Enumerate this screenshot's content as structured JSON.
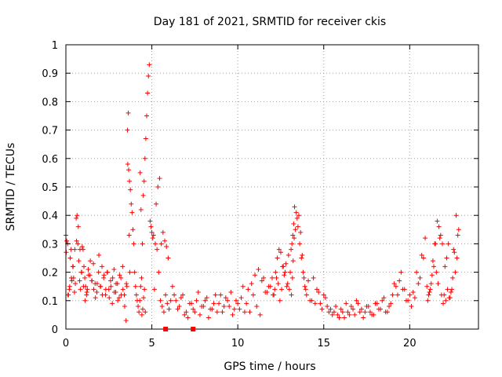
{
  "chart_data": {
    "type": "scatter",
    "title": "Day 181 of 2021, SRMTID for receiver ckis",
    "xlabel": "GPS time / hours",
    "ylabel": "SRMTID / TECUs",
    "xlim": [
      0,
      24
    ],
    "ylim": [
      0,
      1
    ],
    "xticks": [
      0,
      5,
      10,
      15,
      20
    ],
    "yticks": [
      0,
      0.1,
      0.2,
      0.3,
      0.4,
      0.5,
      0.6,
      0.7,
      0.8,
      0.9,
      1
    ],
    "xtick_labels": [
      "0",
      "5",
      "10",
      "15",
      "20"
    ],
    "ytick_labels": [
      "0",
      "0.1",
      "0.2",
      "0.3",
      "0.4",
      "0.5",
      "0.6",
      "0.7",
      "0.8",
      "0.9",
      "1"
    ],
    "marker": "plus",
    "color": "#ff0000",
    "grid": true,
    "gap_markers_x": [
      5.8,
      7.4
    ],
    "series": [
      {
        "name": "SRMTID",
        "x": [
          0.0,
          0.05,
          0.1,
          0.15,
          0.2,
          0.25,
          0.3,
          0.35,
          0.4,
          0.45,
          0.5,
          0.55,
          0.6,
          0.65,
          0.7,
          0.75,
          0.8,
          0.85,
          0.9,
          0.95,
          1.0,
          1.05,
          1.1,
          1.15,
          1.2,
          1.25,
          1.3,
          1.4,
          1.5,
          1.6,
          1.7,
          1.8,
          1.9,
          2.0,
          2.1,
          2.2,
          2.3,
          2.4,
          2.5,
          2.6,
          2.7,
          2.8,
          2.9,
          3.0,
          3.1,
          3.2,
          3.3,
          3.4,
          3.5,
          3.55,
          3.6,
          3.65,
          3.7,
          3.75,
          3.8,
          3.85,
          3.9,
          3.95,
          4.0,
          4.05,
          4.1,
          4.15,
          4.2,
          4.25,
          4.3,
          4.35,
          4.4,
          4.45,
          4.5,
          4.55,
          4.6,
          4.65,
          4.7,
          4.75,
          4.8,
          4.85,
          4.9,
          4.95,
          5.0,
          5.05,
          5.1,
          5.2,
          5.3,
          5.4,
          5.5,
          5.6,
          5.7,
          5.8,
          5.9,
          6.0,
          6.2,
          6.4,
          6.6,
          6.8,
          7.0,
          7.2,
          7.4,
          7.6,
          7.8,
          8.0,
          8.2,
          8.4,
          8.6,
          8.8,
          9.0,
          9.2,
          9.4,
          9.6,
          9.8,
          10.0,
          10.2,
          10.4,
          10.6,
          10.8,
          11.0,
          11.2,
          11.4,
          11.6,
          11.8,
          12.0,
          12.1,
          12.2,
          12.3,
          12.4,
          12.5,
          12.6,
          12.7,
          12.8,
          12.9,
          13.0,
          13.05,
          13.1,
          13.15,
          13.2,
          13.25,
          13.3,
          13.4,
          13.5,
          13.6,
          13.7,
          13.8,
          13.9,
          14.0,
          14.2,
          14.4,
          14.6,
          14.8,
          15.0,
          15.2,
          15.4,
          15.6,
          15.8,
          16.0,
          16.2,
          16.4,
          16.6,
          16.8,
          17.0,
          17.2,
          17.4,
          17.6,
          17.8,
          18.0,
          18.2,
          18.4,
          18.6,
          18.8,
          19.0,
          19.2,
          19.4,
          19.6,
          19.8,
          20.0,
          20.2,
          20.4,
          20.6,
          20.8,
          21.0,
          21.1,
          21.2,
          21.3,
          21.4,
          21.5,
          21.6,
          21.7,
          21.8,
          21.9,
          22.0,
          22.1,
          22.2,
          22.3,
          22.4,
          22.5,
          22.6,
          22.7,
          22.8,
          0.02,
          0.12,
          0.22,
          0.32,
          0.42,
          0.52,
          0.62,
          0.72,
          0.82,
          0.92,
          1.02,
          1.12,
          1.22,
          1.32,
          1.42,
          1.52,
          1.62,
          1.72,
          1.82,
          1.92,
          2.02,
          2.12,
          2.22,
          2.32,
          2.42,
          2.52,
          2.62,
          2.72,
          2.82,
          2.92,
          3.02,
          3.12,
          3.22,
          3.32,
          3.42,
          3.52,
          4.47,
          4.52,
          4.57,
          4.62,
          4.42,
          4.37,
          4.32,
          3.58,
          3.63,
          3.68,
          3.72,
          5.15,
          5.25,
          5.35,
          5.45,
          5.55,
          5.65,
          5.75,
          5.85,
          5.95,
          6.1,
          6.3,
          6.5,
          6.7,
          6.9,
          7.1,
          7.3,
          7.5,
          7.7,
          7.9,
          8.1,
          8.3,
          8.5,
          8.7,
          8.9,
          9.1,
          9.3,
          9.5,
          9.7,
          9.9,
          10.1,
          10.3,
          10.5,
          10.7,
          10.9,
          11.1,
          11.3,
          11.5,
          11.7,
          11.9,
          12.05,
          12.15,
          12.25,
          12.35,
          12.45,
          12.55,
          12.65,
          12.75,
          12.85,
          12.95,
          13.12,
          13.18,
          13.22,
          13.28,
          13.35,
          13.45,
          13.55,
          13.65,
          13.75,
          13.85,
          13.95,
          14.1,
          14.3,
          14.5,
          14.7,
          14.9,
          15.1,
          15.3,
          15.5,
          15.7,
          15.9,
          16.1,
          16.3,
          16.5,
          16.7,
          16.9,
          17.1,
          17.3,
          17.5,
          17.7,
          17.9,
          18.1,
          18.3,
          18.5,
          18.7,
          18.9,
          19.1,
          19.3,
          19.5,
          19.7,
          19.9,
          20.1,
          20.3,
          20.5,
          20.7,
          20.9,
          21.05,
          21.15,
          21.25,
          21.35,
          21.45,
          21.55,
          21.65,
          21.75,
          21.85,
          21.95,
          22.05,
          22.15,
          22.25,
          22.35,
          22.45,
          22.55,
          22.65,
          22.75,
          22.85
        ],
        "y": [
          0.33,
          0.31,
          0.3,
          0.12,
          0.14,
          0.25,
          0.28,
          0.17,
          0.22,
          0.18,
          0.13,
          0.16,
          0.39,
          0.4,
          0.3,
          0.24,
          0.17,
          0.14,
          0.2,
          0.29,
          0.28,
          0.22,
          0.18,
          0.15,
          0.12,
          0.14,
          0.21,
          0.19,
          0.17,
          0.23,
          0.16,
          0.13,
          0.2,
          0.15,
          0.22,
          0.18,
          0.12,
          0.2,
          0.14,
          0.17,
          0.09,
          0.21,
          0.13,
          0.16,
          0.11,
          0.18,
          0.22,
          0.12,
          0.03,
          0.15,
          0.58,
          0.56,
          0.52,
          0.49,
          0.44,
          0.41,
          0.35,
          0.3,
          0.2,
          0.15,
          0.12,
          0.1,
          0.08,
          0.06,
          0.1,
          0.15,
          0.18,
          0.3,
          0.47,
          0.52,
          0.6,
          0.67,
          0.75,
          0.83,
          0.89,
          0.93,
          0.38,
          0.36,
          0.34,
          0.32,
          0.33,
          0.3,
          0.28,
          0.2,
          0.1,
          0.08,
          0.06,
          0.12,
          0.09,
          0.07,
          0.15,
          0.1,
          0.08,
          0.12,
          0.06,
          0.09,
          0.07,
          0.1,
          0.05,
          0.08,
          0.11,
          0.07,
          0.09,
          0.06,
          0.12,
          0.08,
          0.1,
          0.13,
          0.07,
          0.09,
          0.11,
          0.06,
          0.14,
          0.16,
          0.19,
          0.21,
          0.17,
          0.13,
          0.15,
          0.18,
          0.12,
          0.2,
          0.25,
          0.28,
          0.27,
          0.22,
          0.19,
          0.23,
          0.16,
          0.14,
          0.2,
          0.28,
          0.3,
          0.33,
          0.37,
          0.43,
          0.41,
          0.36,
          0.3,
          0.25,
          0.2,
          0.15,
          0.12,
          0.1,
          0.18,
          0.14,
          0.09,
          0.12,
          0.08,
          0.07,
          0.06,
          0.05,
          0.07,
          0.04,
          0.06,
          0.08,
          0.05,
          0.09,
          0.07,
          0.06,
          0.08,
          0.05,
          0.09,
          0.07,
          0.1,
          0.06,
          0.08,
          0.12,
          0.15,
          0.17,
          0.14,
          0.1,
          0.12,
          0.13,
          0.2,
          0.18,
          0.25,
          0.15,
          0.12,
          0.14,
          0.19,
          0.22,
          0.3,
          0.38,
          0.36,
          0.33,
          0.3,
          0.12,
          0.1,
          0.14,
          0.11,
          0.13,
          0.18,
          0.27,
          0.4,
          0.33,
          0.27,
          0.12,
          0.15,
          0.18,
          0.22,
          0.28,
          0.31,
          0.36,
          0.28,
          0.2,
          0.15,
          0.1,
          0.13,
          0.19,
          0.24,
          0.17,
          0.14,
          0.11,
          0.16,
          0.26,
          0.15,
          0.12,
          0.19,
          0.14,
          0.2,
          0.11,
          0.15,
          0.18,
          0.13,
          0.16,
          0.1,
          0.19,
          0.12,
          0.14,
          0.08,
          0.16,
          0.07,
          0.11,
          0.14,
          0.06,
          0.05,
          0.42,
          0.55,
          0.7,
          0.76,
          0.33,
          0.2,
          0.14,
          0.44,
          0.5,
          0.53,
          0.3,
          0.34,
          0.31,
          0.29,
          0.25,
          0.1,
          0.12,
          0.07,
          0.11,
          0.05,
          0.04,
          0.09,
          0.06,
          0.13,
          0.08,
          0.1,
          0.04,
          0.07,
          0.12,
          0.09,
          0.06,
          0.11,
          0.08,
          0.05,
          0.1,
          0.07,
          0.15,
          0.09,
          0.06,
          0.12,
          0.08,
          0.05,
          0.18,
          0.13,
          0.15,
          0.12,
          0.14,
          0.18,
          0.16,
          0.1,
          0.14,
          0.22,
          0.2,
          0.15,
          0.26,
          0.12,
          0.18,
          0.24,
          0.32,
          0.35,
          0.39,
          0.4,
          0.34,
          0.26,
          0.18,
          0.14,
          0.17,
          0.1,
          0.09,
          0.13,
          0.07,
          0.11,
          0.06,
          0.05,
          0.08,
          0.04,
          0.06,
          0.09,
          0.05,
          0.07,
          0.1,
          0.06,
          0.04,
          0.08,
          0.06,
          0.05,
          0.09,
          0.07,
          0.11,
          0.06,
          0.09,
          0.16,
          0.12,
          0.2,
          0.14,
          0.1,
          0.08,
          0.11,
          0.16,
          0.26,
          0.32,
          0.1,
          0.13,
          0.16,
          0.24,
          0.3,
          0.2,
          0.16,
          0.32,
          0.12,
          0.09,
          0.22,
          0.25,
          0.3,
          0.11,
          0.14,
          0.28,
          0.2,
          0.25,
          0.35
        ]
      }
    ]
  }
}
